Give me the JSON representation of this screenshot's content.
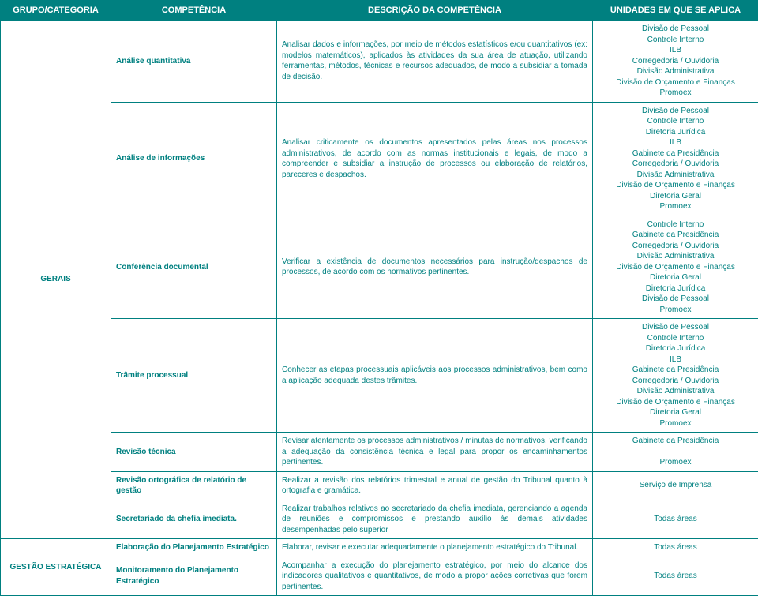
{
  "headers": {
    "group": "GRUPO/CATEGORIA",
    "competence": "COMPETÊNCIA",
    "description": "DESCRIÇÃO DA COMPETÊNCIA",
    "units": "UNIDADES EM QUE SE APLICA"
  },
  "groups": {
    "gerais": "GERAIS",
    "gestao": "GESTÃO ESTRATÉGICA"
  },
  "rows": {
    "r1": {
      "comp": "Análise quantitativa",
      "desc": "Analisar dados e informações, por meio de métodos estatísticos e/ou quantitativos (ex: modelos matemáticos), aplicados às atividades da sua área de atuação, utilizando ferramentas, métodos, técnicas e recursos adequados, de modo a subsidiar a tomada de decisão.",
      "units": [
        "Divisão de Pessoal",
        "Controle Interno",
        "ILB",
        "Corregedoria / Ouvidoria",
        "Divisão Administrativa",
        "Divisão de Orçamento e Finanças",
        "Promoex"
      ]
    },
    "r2": {
      "comp": "Análise de informações",
      "desc": "Analisar criticamente os documentos apresentados pelas áreas nos processos administrativos, de acordo com as normas institucionais e legais, de modo a compreender e subsidiar a instrução de processos ou elaboração de relatórios, pareceres e despachos.",
      "units": [
        "Divisão de Pessoal",
        "Controle Interno",
        "Diretoria Jurídica",
        "ILB",
        "Gabinete da Presidência",
        "Corregedoria / Ouvidoria",
        "Divisão Administrativa",
        "Divisão de Orçamento e Finanças",
        "Diretoria Geral",
        "Promoex"
      ]
    },
    "r3": {
      "comp": "Conferência documental",
      "desc": "Verificar a existência de documentos necessários para instrução/despachos de processos, de acordo com os normativos pertinentes.",
      "units": [
        "Controle Interno",
        "Gabinete da Presidência",
        "Corregedoria / Ouvidoria",
        "Divisão Administrativa",
        "Divisão de Orçamento e Finanças",
        "Diretoria Geral",
        "Diretoria Jurídica",
        "Divisão de Pessoal",
        "Promoex"
      ]
    },
    "r4": {
      "comp": "Trâmite processual",
      "desc": "Conhecer as etapas processuais aplicáveis aos processos administrativos, bem como a aplicação adequada destes trâmites.",
      "units": [
        "Divisão de Pessoal",
        "Controle Interno",
        "Diretoria Jurídica",
        "ILB",
        "Gabinete da Presidência",
        "Corregedoria / Ouvidoria",
        "Divisão Administrativa",
        "Divisão de Orçamento e Finanças",
        "Diretoria Geral",
        "Promoex"
      ]
    },
    "r5": {
      "comp": "Revisão técnica",
      "desc": "Revisar atentamente os processos administrativos / minutas de normativos, verificando a adequação da consistência técnica e legal para propor os encaminhamentos pertinentes.",
      "units": [
        "Gabinete da Presidência",
        "",
        "Promoex"
      ]
    },
    "r6": {
      "comp": "Revisão ortográfica de relatório de gestão",
      "desc": "Realizar a revisão dos relatórios trimestral e anual de gestão do Tribunal quanto à ortografia e gramática.",
      "units": [
        "Serviço de Imprensa"
      ]
    },
    "r7": {
      "comp": "Secretariado da chefia imediata.",
      "desc": "Realizar trabalhos relativos ao secretariado da chefia imediata, gerenciando a agenda de reuniões e compromissos e prestando auxílio às demais atividades desempenhadas pelo superior",
      "units": [
        "Todas áreas"
      ]
    },
    "r8": {
      "comp": "Elaboração do Planejamento Estratégico",
      "desc": "Elaborar, revisar e executar adequadamente o planejamento estratégico do Tribunal.",
      "units": [
        "Todas áreas"
      ]
    },
    "r9": {
      "comp": "Monitoramento do Planejamento Estratégico",
      "desc": "Acompanhar a execução do planejamento estratégico, por meio do alcance dos indicadores qualitativos e quantitativos, de modo a propor ações corretivas que forem pertinentes.",
      "units": [
        "Todas áreas"
      ]
    }
  },
  "colors": {
    "header_bg": "#008080",
    "header_fg": "#ffffff",
    "border": "#008080",
    "text": "#008080",
    "page_bg": "#ffffff"
  },
  "font": {
    "family": "Arial",
    "header_size_pt": 11,
    "body_size_pt": 10
  }
}
